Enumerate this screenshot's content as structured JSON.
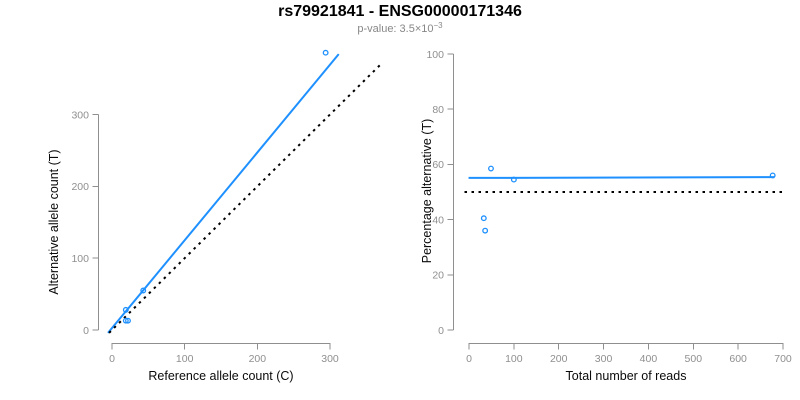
{
  "header": {
    "title": "rs79921841 - ENSG00000171346",
    "subtitle_base": "p-value: 3.5×10",
    "subtitle_exponent": "−3"
  },
  "colors": {
    "accent_blue": "#1E90FF",
    "axis_gray": "#8f8f8f",
    "identity_black": "#000000"
  },
  "chart_data": [
    {
      "type": "scatter",
      "xlabel": "Reference allele count (C)",
      "ylabel": "Alternative allele count (T)",
      "xlim": [
        0,
        300
      ],
      "ylim": [
        0,
        300
      ],
      "xticks": [
        0,
        100,
        200,
        300
      ],
      "yticks": [
        0,
        100,
        200,
        300
      ],
      "grid": false,
      "legend": null,
      "points": [
        [
          19,
          28
        ],
        [
          19,
          13
        ],
        [
          22,
          13
        ],
        [
          43,
          55
        ],
        [
          294,
          386
        ]
      ],
      "lines": [
        {
          "name": "regression-line",
          "style": "solid",
          "color": "#1E90FF",
          "points": [
            [
              -5.5,
              -4
            ],
            [
              312,
              384
            ]
          ]
        },
        {
          "name": "identity-line",
          "style": "dotted",
          "color": "#000000",
          "points": [
            [
              -4,
              -4
            ],
            [
              370,
              370
            ]
          ]
        }
      ]
    },
    {
      "type": "scatter",
      "xlabel": "Total number of reads",
      "ylabel": "Percentage alternative (T)",
      "xlim": [
        0,
        700
      ],
      "ylim": [
        0,
        100
      ],
      "xticks": [
        0,
        100,
        200,
        300,
        400,
        500,
        600,
        700
      ],
      "yticks": [
        0,
        20,
        40,
        60,
        80,
        100
      ],
      "grid": false,
      "legend": null,
      "points": [
        [
          49,
          58.5
        ],
        [
          33,
          40.5
        ],
        [
          36,
          36
        ],
        [
          100,
          54.5
        ],
        [
          677,
          56
        ]
      ],
      "lines": [
        {
          "name": "fit-line",
          "style": "solid",
          "color": "#1E90FF",
          "points": [
            [
              -1,
              55.1
            ],
            [
              681,
              55.4
            ]
          ]
        },
        {
          "name": "expected-line",
          "style": "dotted",
          "color": "#000000",
          "points": [
            [
              -10,
              50
            ],
            [
              703,
              50
            ]
          ]
        }
      ]
    }
  ]
}
